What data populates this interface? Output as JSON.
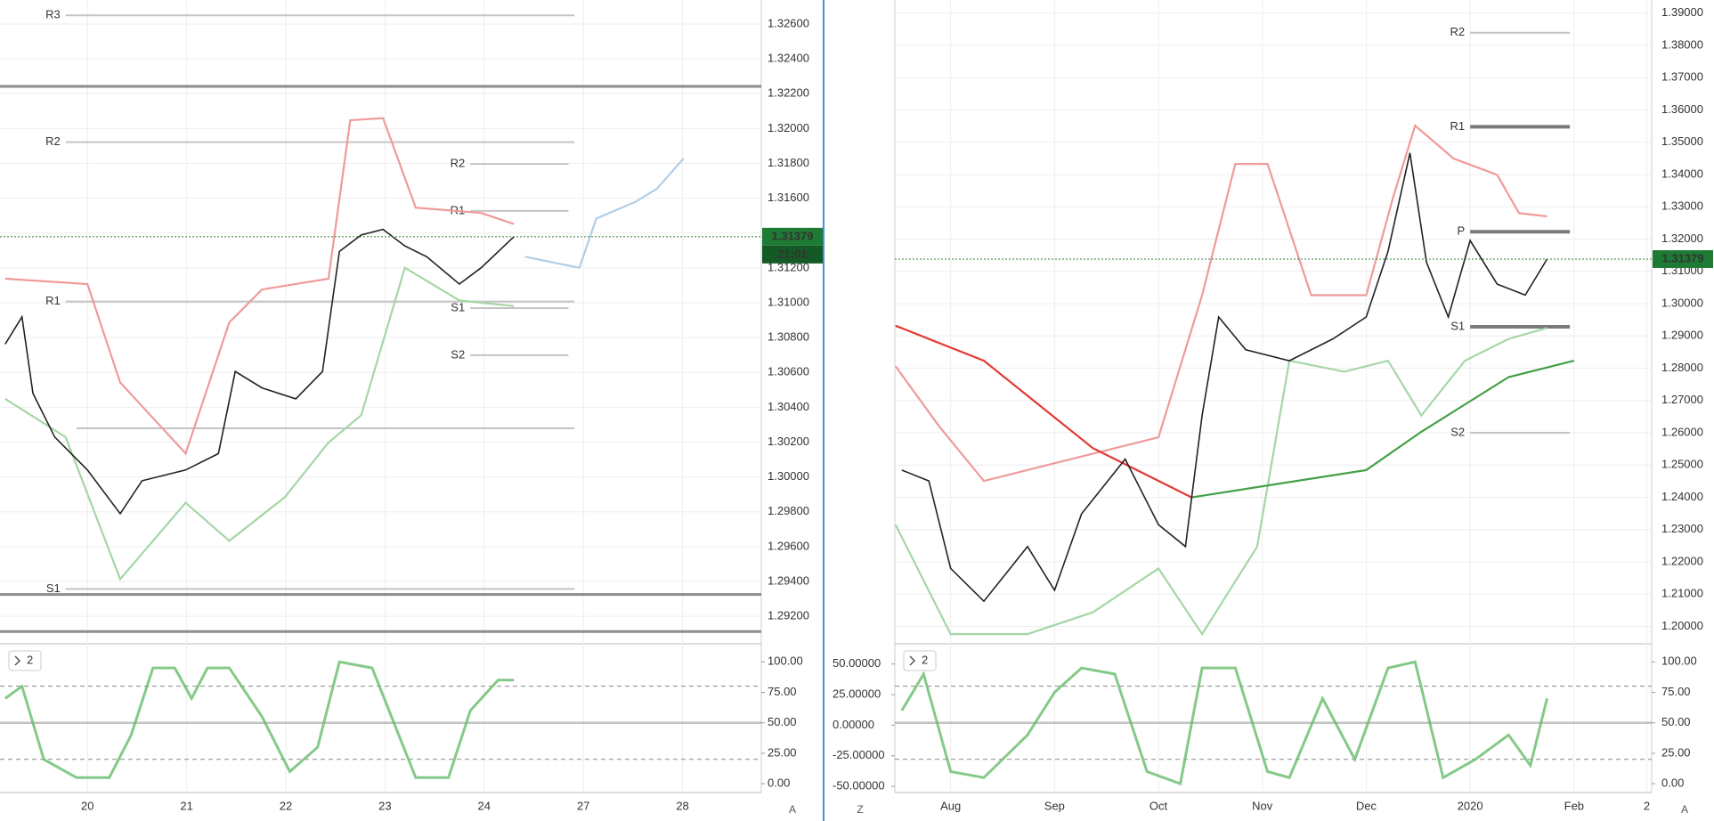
{
  "left": {
    "xlim": [
      -0.882,
      6.794
    ],
    "xticks": [
      {
        "value": 0,
        "label": "20"
      },
      {
        "value": 1,
        "label": "21"
      },
      {
        "value": 2,
        "label": "22"
      },
      {
        "value": 3,
        "label": "23"
      },
      {
        "value": 4,
        "label": "24"
      },
      {
        "value": 5,
        "label": "27"
      },
      {
        "value": 6,
        "label": "28"
      }
    ],
    "ylim": [
      1.29047,
      1.32738
    ],
    "yticks": [
      {
        "value": 1.326,
        "label": "1.32600"
      },
      {
        "value": 1.324,
        "label": "1.32400"
      },
      {
        "value": 1.322,
        "label": "1.32200"
      },
      {
        "value": 1.32,
        "label": "1.32000"
      },
      {
        "value": 1.318,
        "label": "1.31800"
      },
      {
        "value": 1.316,
        "label": "1.31600"
      },
      {
        "value": 1.314,
        "label": "1.31400"
      },
      {
        "value": 1.312,
        "label": "1.31200"
      },
      {
        "value": 1.31,
        "label": "1.31000"
      },
      {
        "value": 1.308,
        "label": "1.30800"
      },
      {
        "value": 1.306,
        "label": "1.30600"
      },
      {
        "value": 1.304,
        "label": "1.30400"
      },
      {
        "value": 1.302,
        "label": "1.30200"
      },
      {
        "value": 1.3,
        "label": "1.30000"
      },
      {
        "value": 1.298,
        "label": "1.29800"
      },
      {
        "value": 1.296,
        "label": "1.29600"
      },
      {
        "value": 1.294,
        "label": "1.29400"
      },
      {
        "value": 1.292,
        "label": "1.29200"
      }
    ],
    "hlines": [
      1.32242,
      1.29325,
      1.29112
    ],
    "pivots": [
      {
        "label": "R3",
        "value": 1.3265,
        "x": [
          -0.22,
          4.91
        ]
      },
      {
        "label": "R2",
        "value": 1.31922,
        "x": [
          -0.22,
          4.91
        ]
      },
      {
        "label": "R1",
        "value": 1.31007,
        "x": [
          -0.22,
          4.91
        ]
      },
      {
        "value": 1.30279,
        "x": [
          -0.11,
          4.91
        ]
      },
      {
        "label": "S1",
        "value": 1.29357,
        "x": [
          -0.22,
          4.91
        ]
      },
      {
        "label": "R2",
        "value": 1.31797,
        "x": [
          3.86,
          4.85
        ]
      },
      {
        "label": "R1",
        "value": 1.31527,
        "x": [
          3.86,
          4.85
        ]
      },
      {
        "label": "S1",
        "value": 1.30969,
        "x": [
          3.86,
          4.85
        ]
      },
      {
        "label": "S2",
        "value": 1.30699,
        "x": [
          3.86,
          4.85
        ]
      }
    ],
    "series": [
      {
        "color": "#ef9a9a",
        "x": [
          -0.83,
          0,
          0.33,
          0.99,
          1.43,
          1.76,
          2.43,
          2.65,
          2.98,
          3.31,
          3.97,
          4.3
        ],
        "values": [
          1.31138,
          1.31107,
          1.30542,
          1.30135,
          1.30887,
          1.31076,
          1.31138,
          1.32048,
          1.3206,
          1.31546,
          1.31515,
          1.31452
        ]
      },
      {
        "color": "#a5d6a7",
        "x": [
          -0.83,
          -0.22,
          0.33,
          0.99,
          1.43,
          1.99,
          2.43,
          2.76,
          3.2,
          3.75,
          4.3
        ],
        "values": [
          1.30448,
          1.30229,
          1.29413,
          1.29852,
          1.29633,
          1.29884,
          1.30197,
          1.30354,
          1.31201,
          1.31013,
          1.30981
        ]
      },
      {
        "color": "#222222",
        "x": [
          -0.83,
          -0.66,
          -0.55,
          -0.33,
          0,
          0.33,
          0.55,
          0.99,
          1.32,
          1.49,
          1.76,
          2.1,
          2.37,
          2.54,
          2.76,
          2.98,
          3.2,
          3.42,
          3.75,
          3.97,
          4.3
        ],
        "values": [
          1.30762,
          1.30919,
          1.3048,
          1.30229,
          1.3004,
          1.29789,
          1.29978,
          1.3004,
          1.30134,
          1.30605,
          1.30511,
          1.30448,
          1.30605,
          1.31295,
          1.31389,
          1.31421,
          1.31326,
          1.31264,
          1.31107,
          1.31201,
          1.31379
        ]
      },
      {
        "color": "#b3cde6",
        "x": [
          4.41,
          4.96,
          5.13,
          5.52,
          5.74,
          6.01
        ],
        "values": [
          1.31264,
          1.31201,
          1.31483,
          1.31578,
          1.31653,
          1.31828
        ]
      }
    ],
    "price": 1.31379,
    "countdown": "21:01",
    "osc": {
      "legend": "2",
      "ylim": [
        -7.2,
        114.1
      ],
      "yticks": [
        {
          "value": 100,
          "label": "100.00"
        },
        {
          "value": 75,
          "label": "75.00"
        },
        {
          "value": 50,
          "label": "50.00"
        },
        {
          "value": 25,
          "label": "25.00"
        },
        {
          "value": 0,
          "label": "0.00"
        }
      ],
      "levels": [
        80,
        50,
        20
      ],
      "color": "#66bb6a",
      "x": [
        -0.83,
        -0.66,
        -0.44,
        -0.11,
        0.22,
        0.44,
        0.66,
        0.88,
        1.05,
        1.21,
        1.43,
        1.76,
        2.04,
        2.32,
        2.54,
        2.87,
        3.09,
        3.31,
        3.64,
        3.86,
        4.14,
        4.3
      ],
      "values": [
        70,
        80,
        20,
        5,
        5,
        40,
        95,
        95,
        70,
        95,
        95,
        55,
        10,
        30,
        100,
        95,
        50,
        5,
        5,
        60,
        85,
        85
      ]
    }
  },
  "right": {
    "xlim": [
      -0.537,
      6.747
    ],
    "xticks": [
      {
        "value": 0,
        "label": "Aug"
      },
      {
        "value": 1,
        "label": "Sep"
      },
      {
        "value": 2,
        "label": "Oct"
      },
      {
        "value": 3,
        "label": "Nov"
      },
      {
        "value": 4,
        "label": "Dec"
      },
      {
        "value": 5,
        "label": "2020"
      },
      {
        "value": 6,
        "label": "Feb"
      },
      {
        "value": 6.7,
        "label": "2"
      }
    ],
    "ylim": [
      1.1949,
      1.39405
    ],
    "yticks": [
      {
        "value": 1.39,
        "label": "1.39000"
      },
      {
        "value": 1.38,
        "label": "1.38000"
      },
      {
        "value": 1.37,
        "label": "1.37000"
      },
      {
        "value": 1.36,
        "label": "1.36000"
      },
      {
        "value": 1.35,
        "label": "1.35000"
      },
      {
        "value": 1.34,
        "label": "1.34000"
      },
      {
        "value": 1.33,
        "label": "1.33000"
      },
      {
        "value": 1.32,
        "label": "1.32000"
      },
      {
        "value": 1.31,
        "label": "1.31000"
      },
      {
        "value": 1.3,
        "label": "1.30000"
      },
      {
        "value": 1.29,
        "label": "1.29000"
      },
      {
        "value": 1.28,
        "label": "1.28000"
      },
      {
        "value": 1.27,
        "label": "1.27000"
      },
      {
        "value": 1.26,
        "label": "1.26000"
      },
      {
        "value": 1.25,
        "label": "1.25000"
      },
      {
        "value": 1.24,
        "label": "1.24000"
      },
      {
        "value": 1.23,
        "label": "1.23000"
      },
      {
        "value": 1.22,
        "label": "1.22000"
      },
      {
        "value": 1.21,
        "label": "1.21000"
      },
      {
        "value": 1.2,
        "label": "1.20000"
      }
    ],
    "hlines": [],
    "pivots": [
      {
        "label": "R2",
        "value": 1.38391,
        "x": [
          5.0,
          5.96
        ]
      },
      {
        "label": "R1",
        "value": 1.35478,
        "x": [
          5.0,
          5.96
        ],
        "bold": true
      },
      {
        "label": "P",
        "value": 1.32227,
        "x": [
          5.0,
          5.96
        ],
        "bold": true
      },
      {
        "label": "S1",
        "value": 1.29281,
        "x": [
          5.0,
          5.96
        ],
        "bold": true
      },
      {
        "label": "S2",
        "value": 1.26,
        "x": [
          5.0,
          5.96
        ]
      }
    ],
    "series": [
      {
        "color": "#ef9a9a",
        "x": [
          -0.53,
          -0.11,
          0.32,
          1.16,
          2.0,
          2.42,
          2.74,
          3.05,
          3.47,
          4.0,
          4.26,
          4.47,
          4.84,
          5.26,
          5.47,
          5.74
        ],
        "values": [
          1.28061,
          1.26198,
          1.24504,
          1.25182,
          1.25859,
          1.30262,
          1.34326,
          1.34326,
          1.30262,
          1.30262,
          1.3331,
          1.35512,
          1.34496,
          1.33988,
          1.32802,
          1.32701
        ]
      },
      {
        "color": "#a5d6a7",
        "x": [
          -0.53,
          0,
          0.74,
          1.37,
          2.0,
          2.42,
          2.95,
          3.26,
          3.79,
          4.21,
          4.53,
          4.95,
          5.37,
          5.74
        ],
        "values": [
          1.2315,
          1.19763,
          1.19763,
          1.2044,
          1.21795,
          1.19763,
          1.22472,
          1.2823,
          1.27891,
          1.2823,
          1.26537,
          1.2823,
          1.28908,
          1.29246
        ]
      },
      {
        "color": "#e53935",
        "x": [
          -0.53,
          0.32,
          1.37,
          2.32
        ],
        "values": [
          1.29315,
          1.28231,
          1.25522,
          1.23998
        ]
      },
      {
        "color": "#43a047",
        "x": [
          2.32,
          4.0,
          4.53,
          5.37,
          6.0
        ],
        "values": [
          1.23998,
          1.24845,
          1.2603,
          1.27723,
          1.28231
        ]
      },
      {
        "color": "#222222",
        "x": [
          -0.47,
          -0.21,
          0,
          0.32,
          0.74,
          1.0,
          1.26,
          1.68,
          2.0,
          2.26,
          2.42,
          2.58,
          2.84,
          3.26,
          3.68,
          4.0,
          4.21,
          4.42,
          4.58,
          4.79,
          5.0,
          5.26,
          5.53,
          5.74
        ],
        "values": [
          1.24845,
          1.24506,
          1.21797,
          1.20781,
          1.22475,
          1.2112,
          1.2349,
          1.25184,
          1.23152,
          1.22475,
          1.26538,
          1.29586,
          1.2857,
          1.28231,
          1.28909,
          1.29586,
          1.31618,
          1.34665,
          1.31279,
          1.29586,
          1.31956,
          1.30602,
          1.30263,
          1.31379
        ]
      }
    ],
    "price": 1.31379,
    "osc": {
      "legend": "2",
      "ylim": [
        -7.2,
        114.1
      ],
      "yticks": [
        {
          "value": 100,
          "label": "100.00"
        },
        {
          "value": 75,
          "label": "75.00"
        },
        {
          "value": 50,
          "label": "50.00"
        },
        {
          "value": 25,
          "label": "25.00"
        },
        {
          "value": 0,
          "label": "0.00"
        }
      ],
      "y2lim": [
        -55.0,
        65.8
      ],
      "y2ticks": [
        {
          "value": 50,
          "label": "50.00000"
        },
        {
          "value": 25,
          "label": "25.00000"
        },
        {
          "value": 0,
          "label": "0.00000"
        },
        {
          "value": -25,
          "label": "-25.00000"
        },
        {
          "value": -50,
          "label": "-50.00000"
        }
      ],
      "levels": [
        80,
        50,
        20
      ],
      "color": "#66bb6a",
      "x": [
        -0.47,
        -0.26,
        0,
        0.32,
        0.74,
        1.0,
        1.26,
        1.58,
        1.89,
        2.21,
        2.42,
        2.74,
        3.05,
        3.26,
        3.58,
        3.89,
        4.21,
        4.47,
        4.74,
        5.05,
        5.37,
        5.58,
        5.74
      ],
      "values": [
        60,
        90,
        10,
        5,
        40,
        75,
        95,
        90,
        10,
        0,
        95,
        95,
        10,
        5,
        70,
        20,
        95,
        100,
        5,
        20,
        40,
        15,
        70
      ]
    }
  },
  "buttons": [
    "A",
    "Z",
    "A"
  ]
}
